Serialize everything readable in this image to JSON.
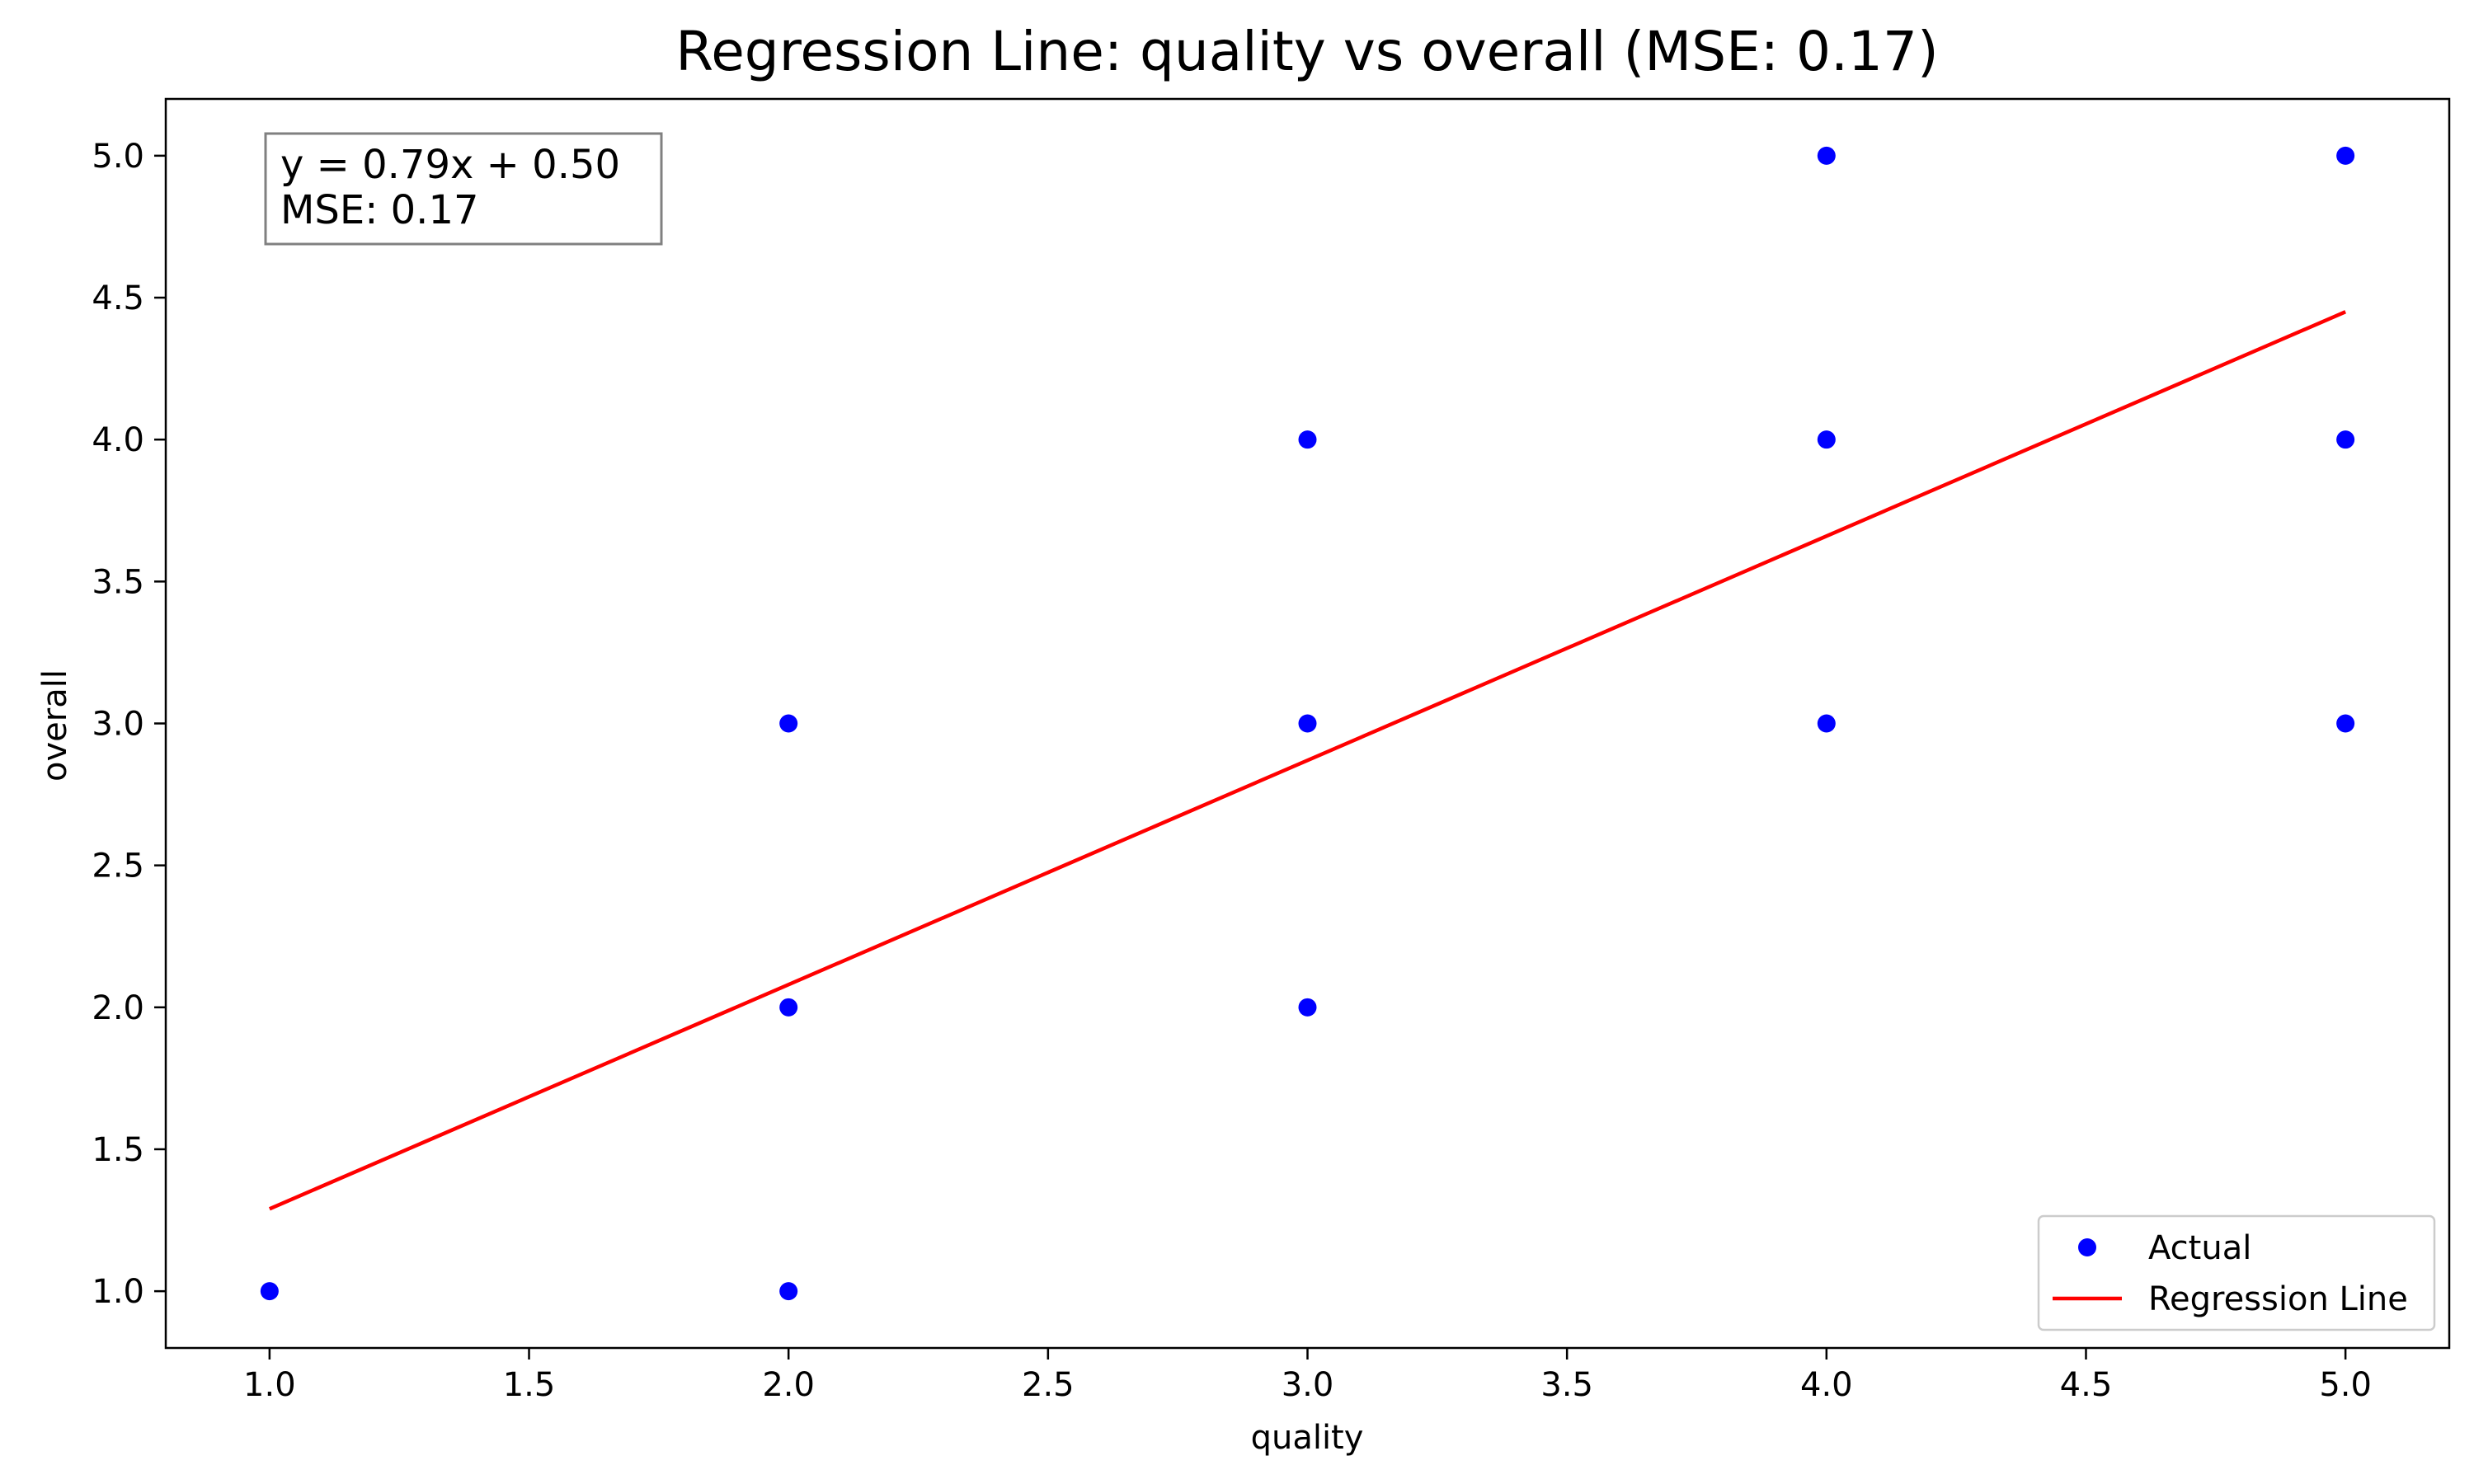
{
  "chart_data": {
    "type": "scatter",
    "title": "Regression Line: quality vs overall (MSE: 0.17)",
    "xlabel": "quality",
    "ylabel": "overall",
    "xlim": [
      0.8,
      5.2
    ],
    "ylim": [
      0.8,
      5.2
    ],
    "xticks": [
      1.0,
      1.5,
      2.0,
      2.5,
      3.0,
      3.5,
      4.0,
      4.5,
      5.0
    ],
    "yticks": [
      1.0,
      1.5,
      2.0,
      2.5,
      3.0,
      3.5,
      4.0,
      4.5,
      5.0
    ],
    "grid": false,
    "legend_position": "lower right",
    "series": [
      {
        "name": "Actual",
        "kind": "scatter",
        "color": "#0000ff",
        "points": [
          [
            1,
            1
          ],
          [
            2,
            1
          ],
          [
            2,
            2
          ],
          [
            2,
            3
          ],
          [
            3,
            2
          ],
          [
            3,
            3
          ],
          [
            3,
            4
          ],
          [
            4,
            3
          ],
          [
            4,
            4
          ],
          [
            4,
            5
          ],
          [
            5,
            3
          ],
          [
            5,
            4
          ],
          [
            5,
            5
          ]
        ]
      },
      {
        "name": "Regression Line",
        "kind": "line",
        "color": "#ff0000",
        "slope": 0.79,
        "intercept": 0.5,
        "x_range": [
          1.0,
          5.0
        ]
      }
    ],
    "annotation": {
      "lines": [
        "y = 0.79x + 0.50",
        "MSE: 0.17"
      ]
    }
  }
}
